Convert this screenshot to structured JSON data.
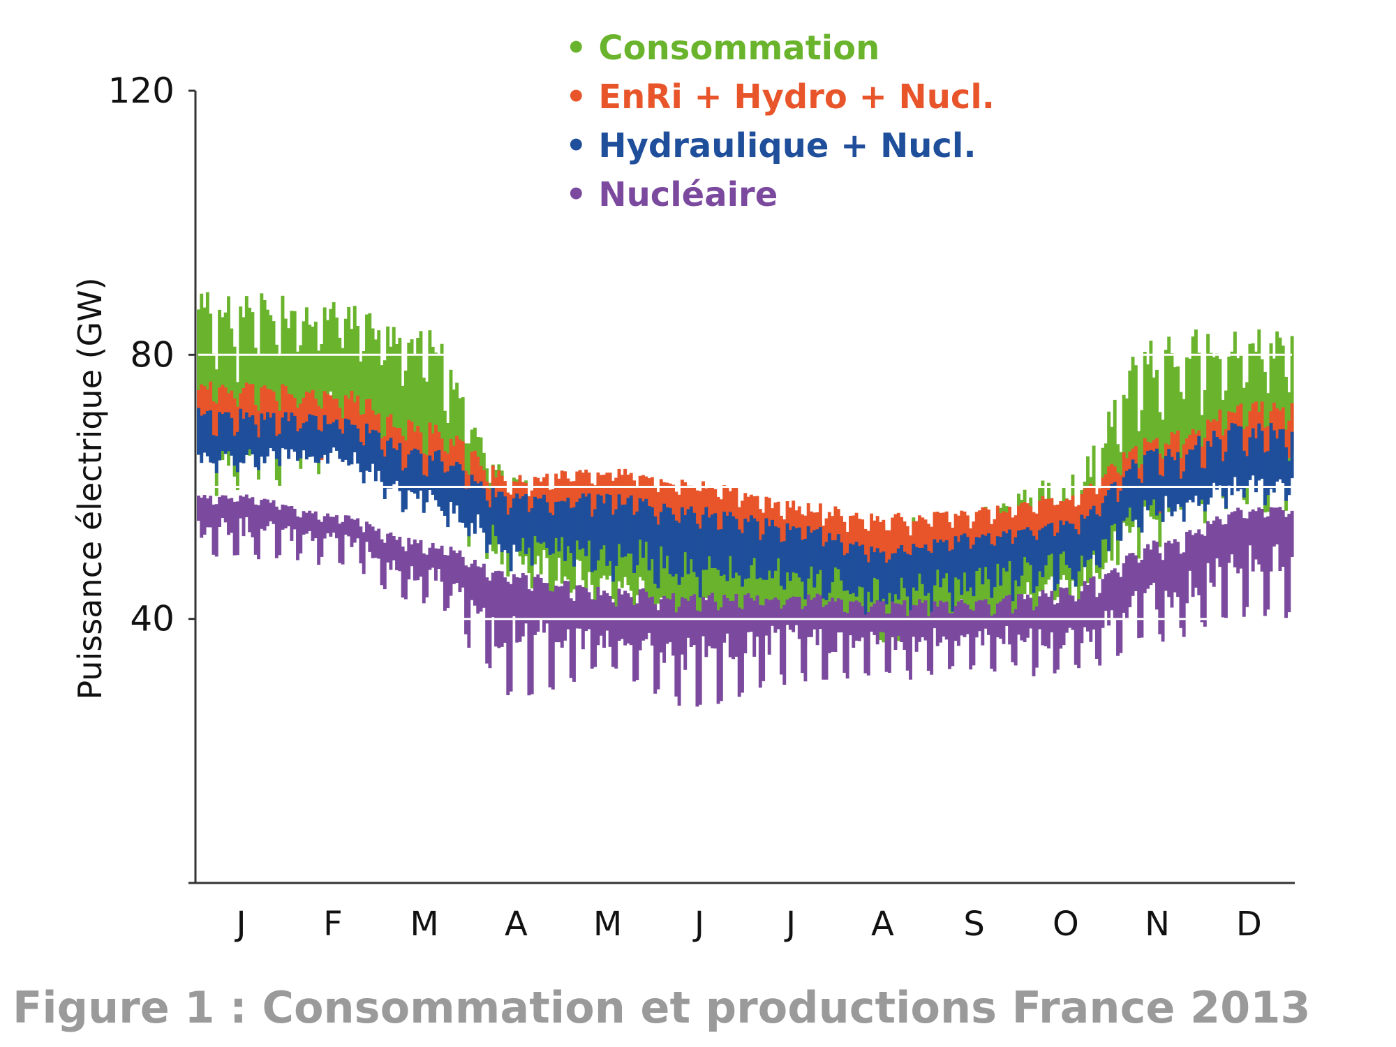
{
  "chart_data": {
    "type": "area",
    "title": "",
    "xlabel": "",
    "ylabel": "Puissance électrique (GW)",
    "ylim": [
      0,
      120
    ],
    "yticks": [
      40,
      80,
      120
    ],
    "reference_lines": [
      40,
      60,
      80
    ],
    "grid": false,
    "legend_position": "top-center",
    "categories": [
      "J",
      "F",
      "M",
      "A",
      "M",
      "J",
      "J",
      "A",
      "S",
      "O",
      "N",
      "D"
    ],
    "series": [
      {
        "name": "Consommation",
        "color": "#6ab42d",
        "values": [
          74,
          78,
          70,
          55,
          50,
          45,
          44,
          42,
          45,
          49,
          65,
          72
        ],
        "daily_min": [
          58,
          62,
          56,
          44,
          40,
          36,
          35,
          34,
          36,
          40,
          50,
          56
        ],
        "daily_max": [
          90,
          88,
          84,
          62,
          60,
          56,
          55,
          55,
          57,
          62,
          84,
          84
        ]
      },
      {
        "name": "EnRi + Hydro + Nucl.",
        "color": "#e8552a",
        "values": [
          71,
          70,
          64,
          58,
          60,
          58,
          54,
          52,
          53,
          56,
          63,
          68
        ],
        "daily_min": [
          64,
          64,
          58,
          52,
          50,
          48,
          46,
          44,
          46,
          48,
          56,
          62
        ],
        "daily_max": [
          76,
          75,
          70,
          62,
          63,
          61,
          58,
          56,
          57,
          59,
          68,
          73
        ]
      },
      {
        "name": "Hydraulique + Nucl.",
        "color": "#1f4e9b",
        "values": [
          67,
          67,
          61,
          55,
          55,
          53,
          51,
          48,
          50,
          52,
          60,
          63
        ],
        "daily_min": [
          62,
          62,
          55,
          47,
          45,
          43,
          42,
          40,
          41,
          43,
          53,
          57
        ],
        "daily_max": [
          72,
          71,
          66,
          59,
          59,
          57,
          55,
          51,
          53,
          55,
          66,
          70
        ]
      },
      {
        "name": "Nucléaire",
        "color": "#7b4a9e",
        "values": [
          57,
          54,
          49,
          44,
          41,
          40,
          41,
          40,
          40,
          41,
          48,
          55
        ],
        "daily_min": [
          50,
          50,
          44,
          30,
          33,
          28,
          32,
          32,
          34,
          33,
          38,
          42
        ],
        "daily_max": [
          59,
          56,
          52,
          47,
          45,
          44,
          44,
          43,
          43,
          45,
          52,
          57
        ]
      }
    ]
  },
  "legend": {
    "bullet": "•",
    "items": [
      {
        "label": "Consommation",
        "color": "#6ab42d"
      },
      {
        "label": "EnRi + Hydro + Nucl.",
        "color": "#e8552a"
      },
      {
        "label": "Hydraulique + Nucl.",
        "color": "#1f4e9b"
      },
      {
        "label": "Nucléaire",
        "color": "#7b4a9e"
      }
    ]
  },
  "caption": "Figure 1 : Consommation et productions France 2013"
}
